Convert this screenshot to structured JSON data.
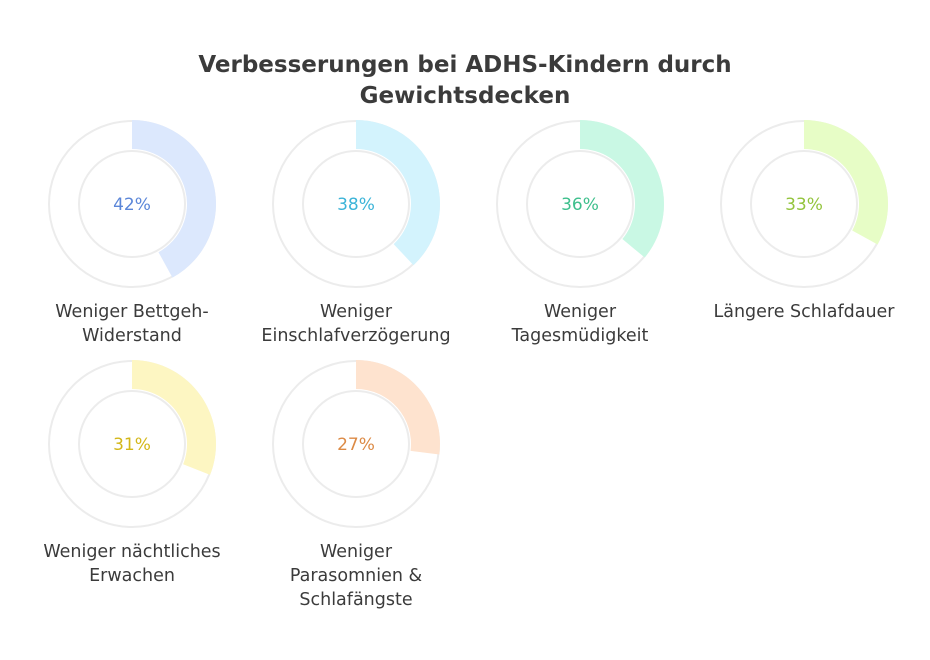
{
  "chart_data": {
    "type": "pie",
    "title_lines": [
      "Verbesserungen bei ADHS-Kindern durch",
      "Gewichtsdecken"
    ],
    "items": [
      {
        "label_lines": [
          "Weniger Bettgeh-",
          "Widerstand"
        ],
        "value": 42,
        "value_label": "42%",
        "fill_color": "#dce8fd",
        "text_color": "#5b86d8"
      },
      {
        "label_lines": [
          "Weniger",
          "Einschlafverzögerung"
        ],
        "value": 38,
        "value_label": "38%",
        "fill_color": "#d3f3fd",
        "text_color": "#3cb4d8"
      },
      {
        "label_lines": [
          "Weniger",
          "Tagesmüdigkeit"
        ],
        "value": 36,
        "value_label": "36%",
        "fill_color": "#c9f8e4",
        "text_color": "#3dbf8c"
      },
      {
        "label_lines": [
          "Längere Schlafdauer"
        ],
        "value": 33,
        "value_label": "33%",
        "fill_color": "#e7fdc6",
        "text_color": "#93c43c"
      },
      {
        "label_lines": [
          "Weniger nächtliches",
          "Erwachen"
        ],
        "value": 31,
        "value_label": "31%",
        "fill_color": "#fdf6c2",
        "text_color": "#d3b719"
      },
      {
        "label_lines": [
          "Weniger",
          "Parasomnien &",
          "Schlafängste"
        ],
        "value": 27,
        "value_label": "27%",
        "fill_color": "#fee3cf",
        "text_color": "#dc8a45"
      }
    ],
    "track_color": "#ececec"
  }
}
